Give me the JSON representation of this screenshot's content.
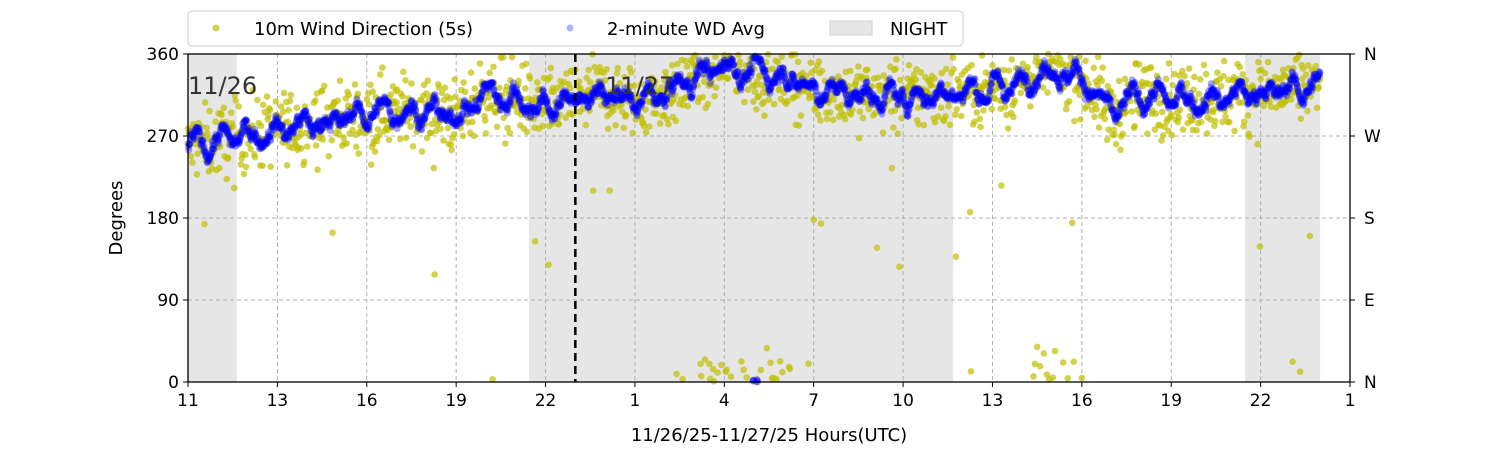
{
  "chart_data": {
    "type": "scatter",
    "title": "",
    "xlabel": "11/26/25-11/27/25  Hours(UTC)",
    "ylabel": "Degrees",
    "xlim": [
      0,
      39
    ],
    "ylim": [
      0,
      360
    ],
    "x_unit_note": "tick positions index",
    "x_ticks": [
      0,
      3,
      6,
      9,
      12,
      15,
      18,
      21,
      24,
      27,
      30,
      33,
      36,
      39
    ],
    "x_tick_labels": [
      "11",
      "13",
      "16",
      "19",
      "22",
      "1",
      "4",
      "7",
      "10",
      "13",
      "16",
      "19",
      "22",
      "1"
    ],
    "y_ticks": [
      0,
      90,
      180,
      270,
      360
    ],
    "y_tick_labels": [
      "0",
      "90",
      "180",
      "270",
      "360"
    ],
    "y2_tick_labels": [
      "N",
      "E",
      "S",
      "W",
      "N"
    ],
    "grid": true,
    "legend": {
      "placement": "top",
      "entries": [
        "10m Wind Direction (5s)",
        "2-minute WD Avg",
        "NIGHT"
      ]
    },
    "night_periods": [
      [
        0,
        1.64
      ],
      [
        11.44,
        25.68
      ],
      [
        35.48,
        38.0
      ]
    ],
    "midnight_line": 13.0,
    "date_labels": [
      {
        "x": 0,
        "text": "11/26"
      },
      {
        "x": 14.0,
        "text": "11/27"
      }
    ],
    "colors": {
      "wd": "#bfbf00",
      "avg": "#0000ff",
      "night": "#e6e6e6"
    },
    "series": [
      {
        "name": "2-minute WD Avg (trend)",
        "x": [
          0,
          1.5,
          3,
          4.5,
          6,
          7.5,
          9,
          10,
          11,
          12,
          13,
          14,
          15,
          16,
          17,
          18,
          19,
          20,
          21,
          22,
          24,
          25,
          27,
          28,
          28.5,
          29.5,
          30,
          31,
          32,
          33,
          34.5,
          36,
          37,
          38
        ],
        "y": [
          258,
          268,
          278,
          285,
          295,
          300,
          290,
          318,
          312,
          300,
          312,
          318,
          305,
          315,
          335,
          348,
          340,
          338,
          322,
          318,
          312,
          318,
          322,
          328,
          345,
          340,
          335,
          292,
          315,
          310,
          312,
          318,
          322,
          325
        ]
      }
    ]
  }
}
